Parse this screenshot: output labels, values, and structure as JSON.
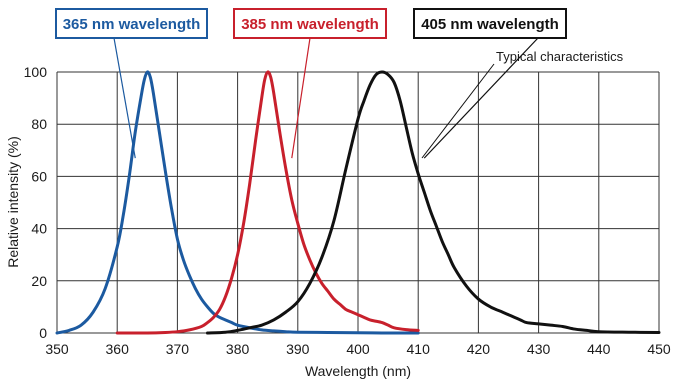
{
  "chart_data": {
    "type": "line",
    "title": "",
    "xlabel": "Wavelength (nm)",
    "ylabel": "Relative intensity (%)",
    "xlim": [
      350,
      450
    ],
    "ylim": [
      0,
      100
    ],
    "xticks": [
      350,
      360,
      370,
      380,
      390,
      400,
      410,
      420,
      430,
      440,
      450
    ],
    "yticks": [
      0,
      20,
      40,
      60,
      80,
      100
    ],
    "grid": true,
    "annotation": "Typical characteristics",
    "series": [
      {
        "name": "365 nm wavelength",
        "color": "#1c5aa0",
        "x": [
          350,
          352,
          354,
          356,
          358,
          360,
          361,
          362,
          363,
          364,
          364.5,
          365,
          365.5,
          366,
          367,
          368,
          369,
          370,
          371,
          372,
          373,
          374,
          375,
          376,
          377,
          378,
          379,
          380,
          382,
          384,
          386,
          388,
          390,
          395,
          400,
          405,
          410
        ],
        "y": [
          0,
          1,
          3,
          8,
          17,
          33,
          45,
          60,
          77,
          91,
          97,
          100,
          98,
          92,
          77,
          62,
          48,
          36,
          28,
          22,
          17,
          13,
          10,
          7.5,
          6,
          5,
          4,
          3,
          2,
          1.2,
          0.8,
          0.5,
          0.3,
          0.2,
          0.1,
          0,
          0
        ]
      },
      {
        "name": "385 nm wavelength",
        "color": "#c8202c",
        "x": [
          360,
          365,
          368,
          370,
          372,
          374,
          375,
          376,
          377,
          378,
          379,
          380,
          381,
          382,
          383,
          384,
          384.5,
          385,
          385.5,
          386,
          387,
          388,
          389,
          390,
          391,
          392,
          393,
          394,
          395,
          396,
          397,
          398,
          399,
          400,
          401,
          402,
          403,
          404,
          405,
          406,
          408,
          410
        ],
        "y": [
          0,
          0,
          0.2,
          0.5,
          1.2,
          2.5,
          4,
          6,
          9,
          14,
          21,
          30,
          42,
          57,
          74,
          90,
          97,
          100,
          98,
          92,
          77,
          63,
          51,
          42,
          34,
          28,
          23,
          19,
          16,
          13,
          11,
          9,
          8,
          7,
          6,
          5,
          4.5,
          4,
          3,
          2,
          1.3,
          1
        ]
      },
      {
        "name": "405 nm wavelength",
        "color": "#111111",
        "x": [
          375,
          378,
          380,
          382,
          384,
          386,
          388,
          390,
          392,
          394,
          396,
          398,
          400,
          401,
          402,
          403,
          404,
          405,
          406,
          407,
          408,
          409,
          410,
          411,
          412,
          413,
          414,
          415,
          416,
          418,
          420,
          422,
          424,
          425,
          426,
          427,
          428,
          430,
          432,
          434,
          436,
          438,
          440,
          445,
          450
        ],
        "y": [
          0,
          0.3,
          1,
          2,
          3,
          5,
          8,
          12,
          19,
          29,
          43,
          63,
          82,
          89,
          95,
          99,
          100,
          99,
          96,
          89,
          79,
          69,
          61,
          54,
          47,
          41,
          35,
          30,
          25,
          18,
          13,
          10,
          8,
          7,
          6,
          5,
          4,
          3.5,
          3,
          2.5,
          1.5,
          1,
          0.5,
          0.3,
          0.2
        ]
      }
    ],
    "callouts": [
      {
        "series": 0,
        "label": "365 nm wavelength",
        "color": "#1c5aa0",
        "anchor_x": 363,
        "anchor_y": 67
      },
      {
        "series": 1,
        "label": "385 nm wavelength",
        "color": "#c8202c",
        "anchor_x": 389,
        "anchor_y": 67
      },
      {
        "series": 2,
        "label": "405 nm wavelength",
        "color": "#111111",
        "anchor_x": 411,
        "anchor_y": 67
      }
    ]
  }
}
